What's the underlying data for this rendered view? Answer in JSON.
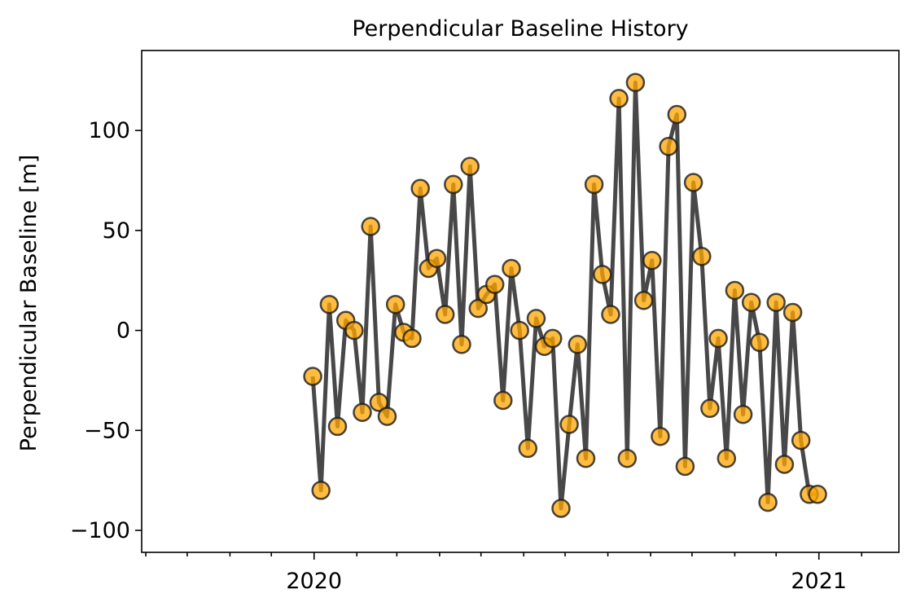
{
  "chart_data": {
    "type": "line",
    "title": "Perpendicular Baseline History",
    "xlabel": "",
    "ylabel": "Perpendicular Baseline [m]",
    "xlim": [
      "2019-08-29",
      "2021-02-28"
    ],
    "ylim": [
      -111,
      140
    ],
    "yticks": [
      -100,
      -50,
      0,
      50,
      100
    ],
    "yticklabels": [
      "−100",
      "−50",
      "0",
      "50",
      "100"
    ],
    "xticks": [
      "2020-01-01",
      "2021-01-01"
    ],
    "xticklabels": [
      "2020",
      "2021"
    ],
    "minor_xticks": [
      "2019-09-01",
      "2019-10-01",
      "2019-11-01",
      "2019-12-01",
      "2020-02-01",
      "2020-03-01",
      "2020-04-01",
      "2020-05-01",
      "2020-06-01",
      "2020-07-01",
      "2020-08-01",
      "2020-09-01",
      "2020-10-01",
      "2020-11-01",
      "2020-12-01",
      "2021-02-01"
    ],
    "grid": false,
    "line_color": "#1a1a1a",
    "marker_face": "#ffa500",
    "marker_edge": "#1a1a1a",
    "series": [
      {
        "x": [
          "2019-12-31",
          "2020-01-06",
          "2020-01-12",
          "2020-01-18",
          "2020-01-24",
          "2020-01-30",
          "2020-02-05",
          "2020-02-11",
          "2020-02-17",
          "2020-02-23",
          "2020-02-29",
          "2020-03-06",
          "2020-03-12",
          "2020-03-18",
          "2020-03-24",
          "2020-03-30",
          "2020-04-05",
          "2020-04-11",
          "2020-04-17",
          "2020-04-23",
          "2020-04-29",
          "2020-05-05",
          "2020-05-11",
          "2020-05-17",
          "2020-05-23",
          "2020-05-29",
          "2020-06-04",
          "2020-06-10",
          "2020-06-16",
          "2020-06-22",
          "2020-06-28",
          "2020-07-04",
          "2020-07-10",
          "2020-07-16",
          "2020-07-22",
          "2020-07-28",
          "2020-08-03",
          "2020-08-09",
          "2020-08-15",
          "2020-08-21",
          "2020-08-27",
          "2020-09-02",
          "2020-09-08",
          "2020-09-14",
          "2020-09-20",
          "2020-09-26",
          "2020-10-02",
          "2020-10-08",
          "2020-10-14",
          "2020-10-20",
          "2020-10-26",
          "2020-11-01",
          "2020-11-07",
          "2020-11-13",
          "2020-11-19",
          "2020-11-25",
          "2020-12-01",
          "2020-12-07",
          "2020-12-13",
          "2020-12-19",
          "2020-12-25",
          "2020-12-31"
        ],
        "y": [
          -23,
          -80,
          13,
          -48,
          5,
          0,
          -41,
          52,
          -36,
          -43,
          13,
          -1,
          -4,
          71,
          31,
          36,
          8,
          73,
          -7,
          82,
          11,
          18,
          23,
          -35,
          31,
          0,
          -59,
          6,
          -8,
          -4,
          -89,
          -47,
          -7,
          -64,
          73,
          28,
          8,
          116,
          -64,
          124,
          15,
          35,
          -53,
          92,
          108,
          -68,
          74,
          37,
          -39,
          -4,
          -64,
          20,
          -42,
          14,
          -6,
          -86,
          14,
          -67,
          9,
          -55,
          -82,
          -82
        ]
      }
    ]
  }
}
